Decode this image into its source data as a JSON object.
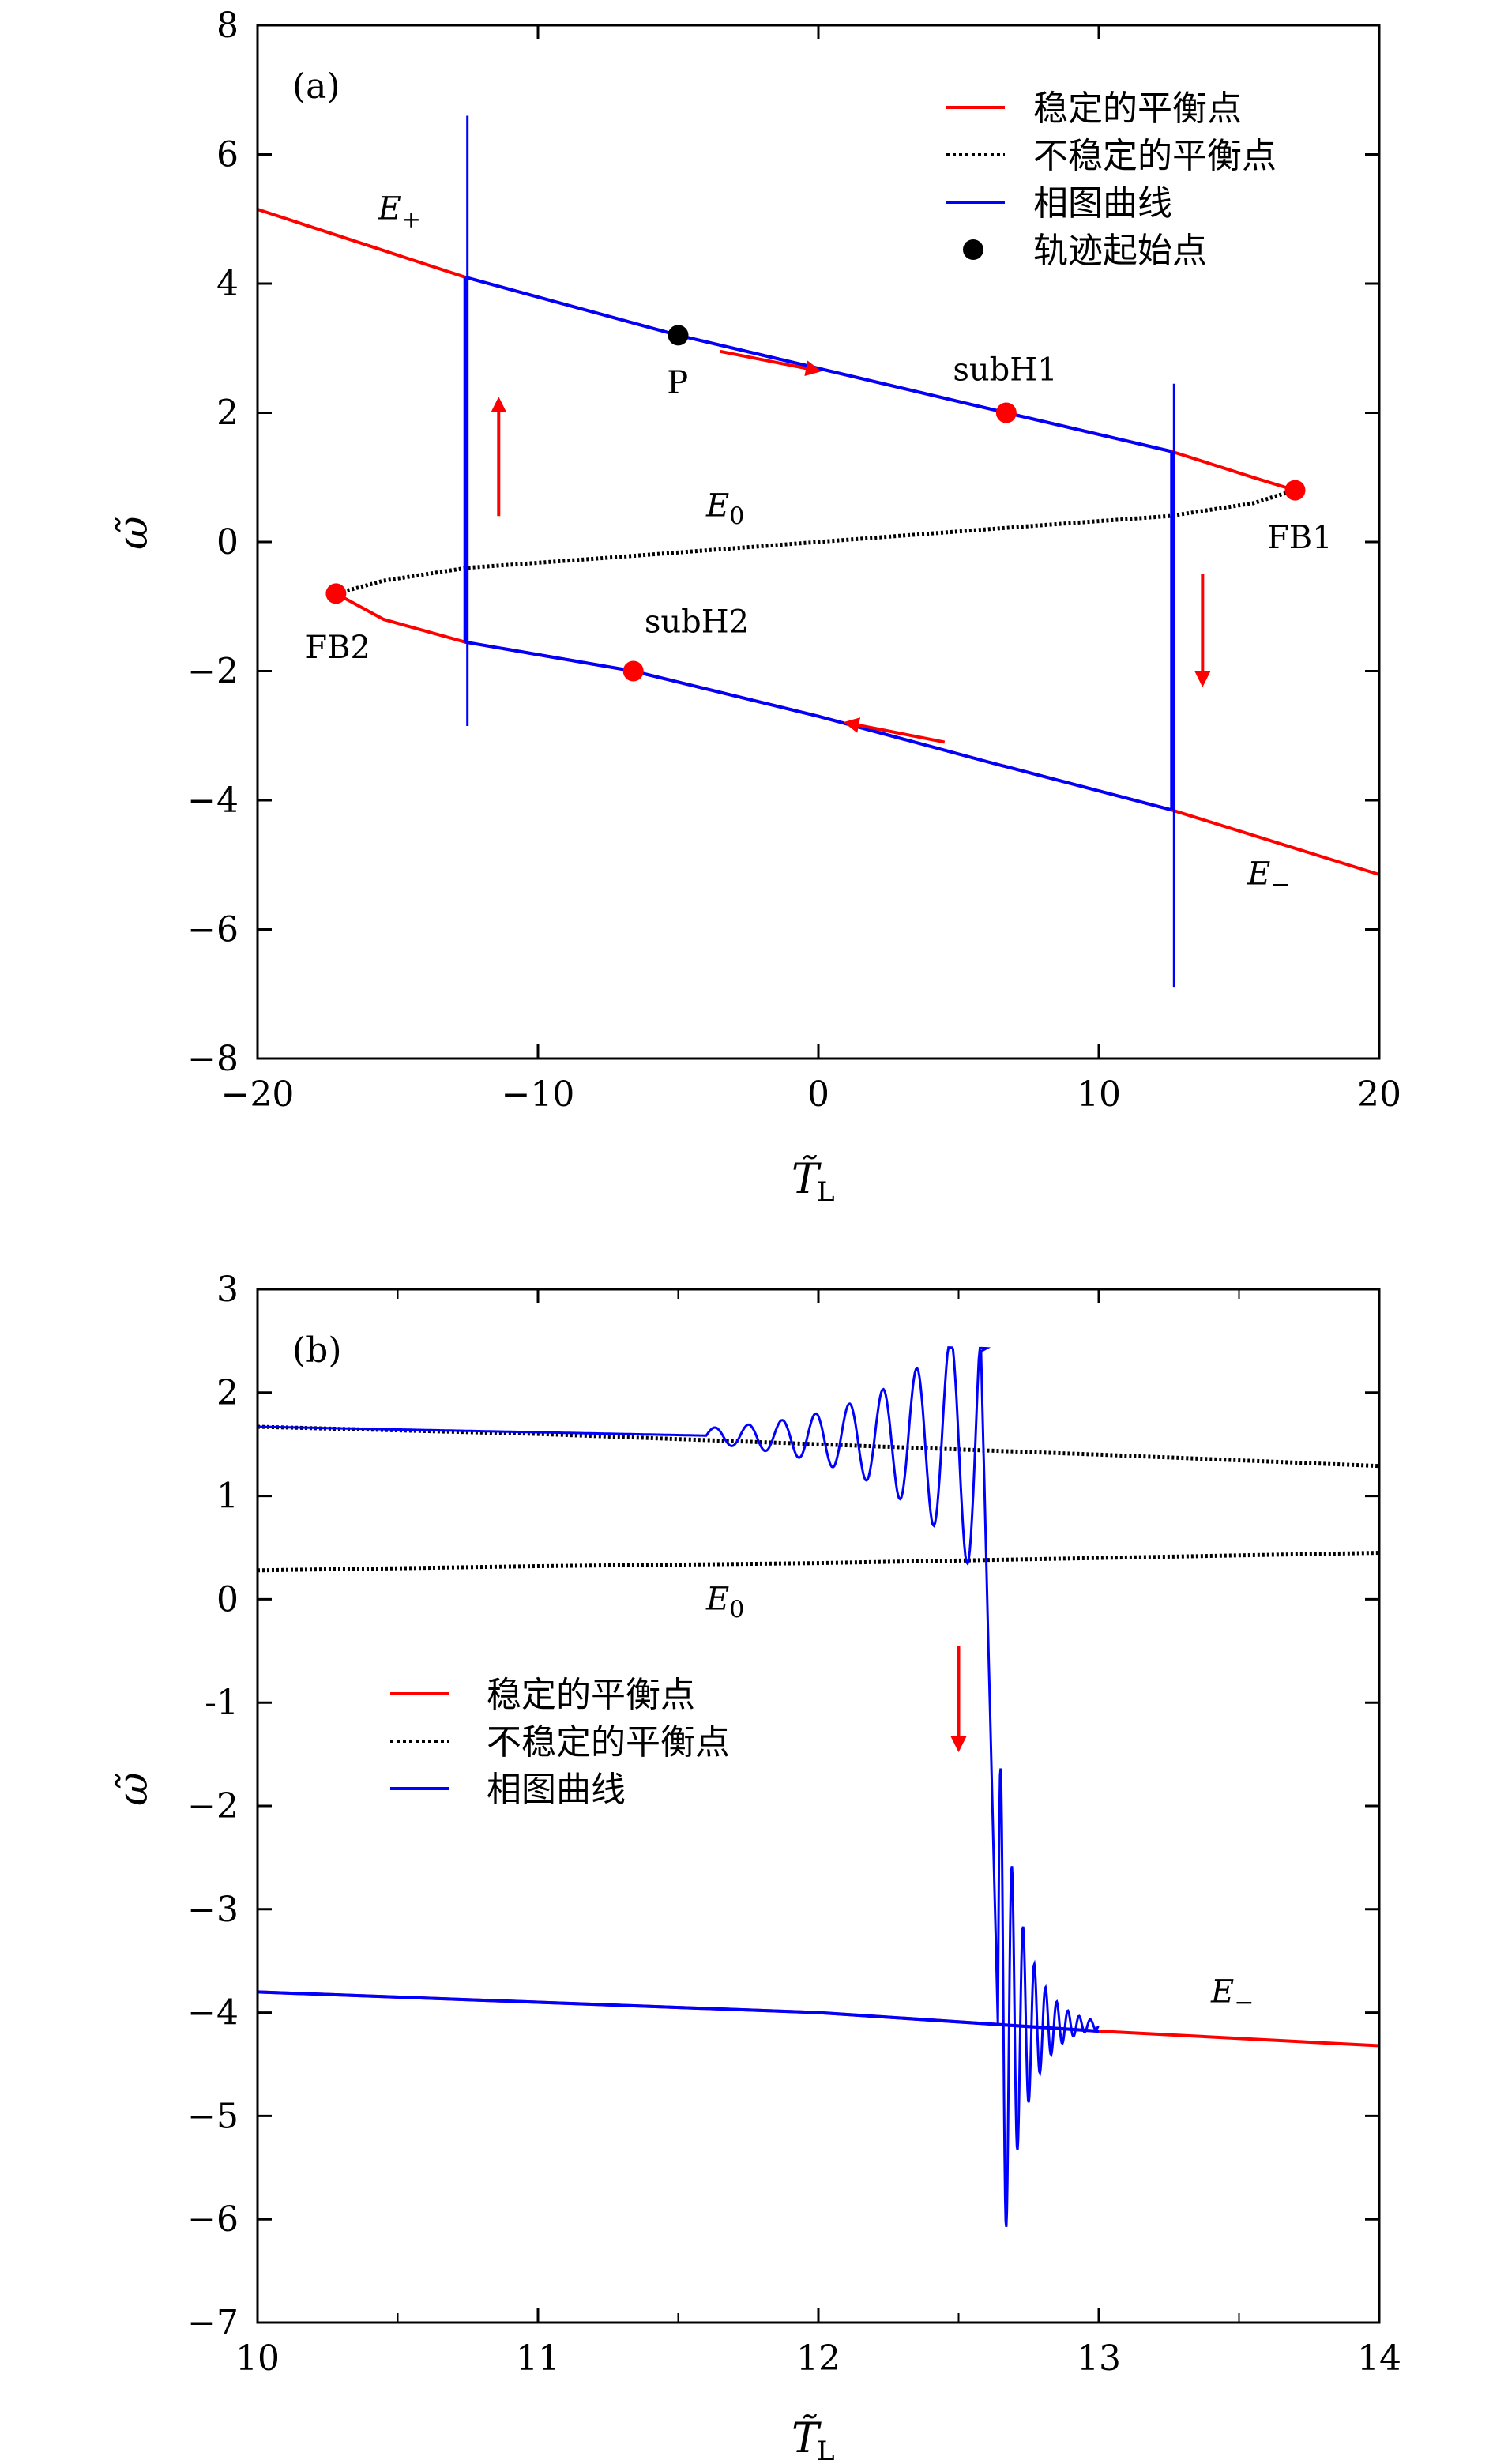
{
  "chart_data": [
    {
      "type": "line",
      "panel_label": "(a)",
      "xlabel_main": "T̃",
      "xlabel_sub": "L",
      "ylabel": "ω̃",
      "xlim": [
        -20,
        20
      ],
      "ylim": [
        -8,
        8
      ],
      "xticks": [
        -20,
        -10,
        0,
        10,
        20
      ],
      "yticks": [
        -8,
        -6,
        -4,
        -2,
        0,
        2,
        4,
        6,
        8
      ],
      "xticklabels": [
        "−20",
        "−10",
        "0",
        "10",
        "20"
      ],
      "yticklabels": [
        "−8",
        "−6",
        "−4",
        "−2",
        "0",
        "2",
        "4",
        "6",
        "8"
      ],
      "legend_position": "top-right",
      "legend": [
        {
          "label": "稳定的平衡点",
          "style": "red-line"
        },
        {
          "label": "不稳定的平衡点",
          "style": "black-dotted"
        },
        {
          "label": "相图曲线",
          "style": "blue-line"
        },
        {
          "label": "轨迹起始点",
          "style": "black-dot"
        }
      ],
      "colors": {
        "stable": "#ff0000",
        "unstable": "#000000",
        "trajectory": "#0000ff",
        "start": "#000000",
        "bifurcation": "#ff0000"
      },
      "series": [
        {
          "name": "稳定的平衡点",
          "points": [
            [
              -20,
              5.15
            ],
            [
              -12.6,
              4.1
            ],
            [
              -5.0,
              3.2
            ],
            [
              6.7,
              2.0
            ],
            [
              12.6,
              1.4
            ],
            [
              15.5,
              1.0
            ],
            [
              17.0,
              0.8
            ]
          ]
        },
        {
          "name": "稳定的平衡点",
          "points": [
            [
              -17.2,
              -0.8
            ],
            [
              -15.5,
              -1.2
            ],
            [
              -12.6,
              -1.55
            ],
            [
              -6.6,
              -2.0
            ],
            [
              0,
              -2.7
            ],
            [
              6,
              -3.4
            ],
            [
              12.6,
              -4.15
            ],
            [
              20,
              -5.15
            ]
          ]
        },
        {
          "name": "不稳定的平衡点",
          "points": [
            [
              17.0,
              0.8
            ],
            [
              15.5,
              0.6
            ],
            [
              12.5,
              0.4
            ],
            [
              8,
              0.26
            ],
            [
              0,
              0.0
            ],
            [
              -8,
              -0.26
            ],
            [
              -12.5,
              -0.4
            ],
            [
              -15.5,
              -0.6
            ],
            [
              -17.2,
              -0.8
            ]
          ]
        }
      ],
      "points": [
        {
          "label": "P",
          "x": -5.0,
          "y": 3.2,
          "color": "#000000"
        },
        {
          "label": "subH1",
          "x": 6.7,
          "y": 2.0,
          "color": "#ff0000"
        },
        {
          "label": "subH2",
          "x": -6.6,
          "y": -2.0,
          "color": "#ff0000"
        },
        {
          "label": "FB1",
          "x": 17.0,
          "y": 0.8,
          "color": "#ff0000"
        },
        {
          "label": "FB2",
          "x": -17.2,
          "y": -0.8,
          "color": "#ff0000"
        }
      ],
      "annotations": [
        {
          "text": "E",
          "sub": "+",
          "x": -15.7,
          "y": 5.0
        },
        {
          "text": "E",
          "sub": "0",
          "x": -4.0,
          "y": 0.4
        },
        {
          "text": "E",
          "sub": "−",
          "x": 15.3,
          "y": -5.3
        },
        {
          "text": "P",
          "x": -5.4,
          "y": 2.3
        },
        {
          "text": "subH1",
          "x": 4.8,
          "y": 2.5
        },
        {
          "text": "subH2",
          "x": -6.2,
          "y": -1.4
        },
        {
          "text": "FB1",
          "x": 16.0,
          "y": -0.1
        },
        {
          "text": "FB2",
          "x": -18.3,
          "y": -1.8
        }
      ]
    },
    {
      "type": "line",
      "panel_label": "(b)",
      "xlabel_main": "T̃",
      "xlabel_sub": "L",
      "ylabel": "ω̃",
      "xlim": [
        10,
        14
      ],
      "ylim": [
        -7,
        3
      ],
      "xticks": [
        10,
        11,
        12,
        13,
        14
      ],
      "yticks": [
        -7,
        -6,
        -5,
        -4,
        -3,
        -2,
        -1,
        0,
        1,
        2,
        3
      ],
      "xticklabels": [
        "10",
        "11",
        "12",
        "13",
        "14"
      ],
      "yticklabels": [
        "−7",
        "−6",
        "−5",
        "−4",
        "−3",
        "−2",
        "-1",
        "0",
        "1",
        "2",
        "3"
      ],
      "legend_position": "center-left",
      "legend": [
        {
          "label": "稳定的平衡点",
          "style": "red-line"
        },
        {
          "label": "不稳定的平衡点",
          "style": "black-dotted"
        },
        {
          "label": "相图曲线",
          "style": "blue-line"
        }
      ],
      "series": [
        {
          "name": "不稳定的平衡点",
          "points": [
            [
              10,
              1.67
            ],
            [
              11,
              1.6
            ],
            [
              12,
              1.5
            ],
            [
              13,
              1.4
            ],
            [
              14,
              1.29
            ]
          ]
        },
        {
          "name": "不稳定的平衡点",
          "points": [
            [
              10,
              0.28
            ],
            [
              11,
              0.32
            ],
            [
              12,
              0.35
            ],
            [
              13,
              0.4
            ],
            [
              14,
              0.45
            ]
          ]
        },
        {
          "name": "稳定的平衡点",
          "points": [
            [
              10,
              -3.8
            ],
            [
              11,
              -3.9
            ],
            [
              12,
              -4.0
            ],
            [
              13,
              -4.18
            ],
            [
              14,
              -4.32
            ]
          ]
        }
      ],
      "annotations": [
        {
          "text": "E",
          "sub": "0",
          "x": 11.6,
          "y": -0.1
        },
        {
          "text": "E",
          "sub": "−",
          "x": 13.4,
          "y": -3.9
        }
      ]
    }
  ]
}
